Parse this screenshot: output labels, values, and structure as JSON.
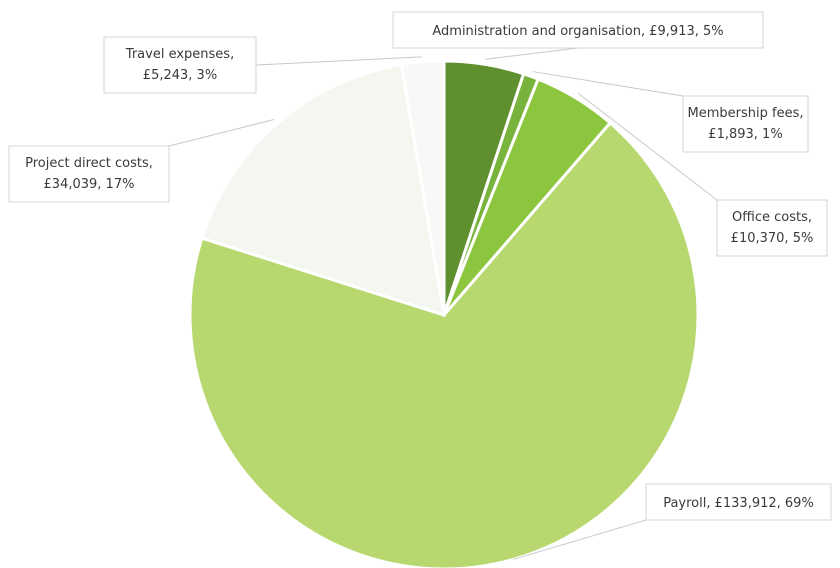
{
  "chart_data": {
    "type": "pie",
    "title": "",
    "currency": "£",
    "slices": [
      {
        "name": "Administration and organisation",
        "value": 9913,
        "percent": 5,
        "value_label": "£9,913",
        "percent_label": "5%",
        "color": "#5f8f2f"
      },
      {
        "name": "Membership fees",
        "value": 1893,
        "percent": 1,
        "value_label": "£1,893",
        "percent_label": "1%",
        "color": "#78b33c"
      },
      {
        "name": "Office costs",
        "value": 10370,
        "percent": 5,
        "value_label": "£10,370",
        "percent_label": "5%",
        "color": "#8cc63f"
      },
      {
        "name": "Payroll",
        "value": 133912,
        "percent": 69,
        "value_label": "£133,912",
        "percent_label": "69%",
        "color": "#b6d86f"
      },
      {
        "name": "Project direct costs",
        "value": 34039,
        "percent": 17,
        "value_label": "£34,039",
        "percent_label": "17%",
        "color": "#f4f6f0"
      },
      {
        "name": "Travel expenses",
        "value": 5243,
        "percent": 3,
        "value_label": "£5,243",
        "percent_label": "3%",
        "color": "#f8f9f6"
      }
    ],
    "start_angle_deg": 0,
    "direction": "clockwise",
    "legend": "none",
    "data_labels": "outside-with-leader-lines"
  }
}
